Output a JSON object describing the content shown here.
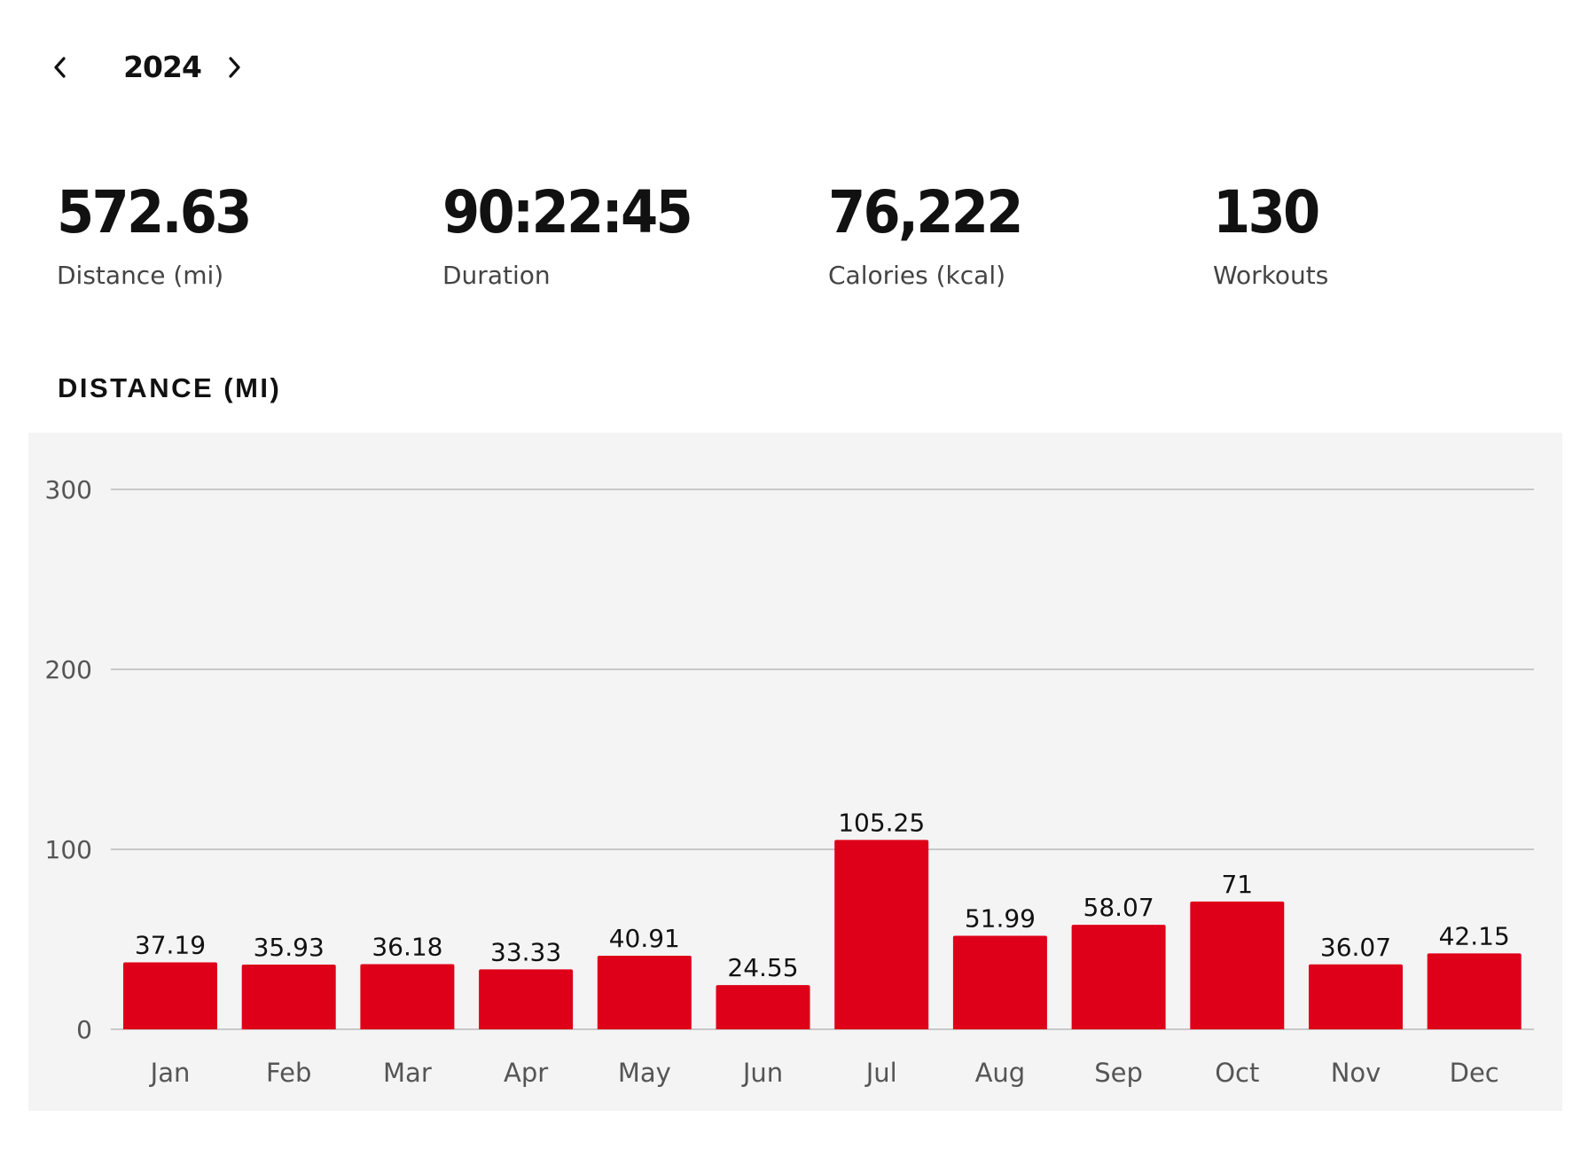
{
  "nav": {
    "year": "2024",
    "prev_icon": "chevron-left-icon",
    "next_icon": "chevron-right-icon"
  },
  "stats": [
    {
      "value": "572.63",
      "label": "Distance (mi)"
    },
    {
      "value": "90:22:45",
      "label": "Duration"
    },
    {
      "value": "76,222",
      "label": "Calories (kcal)"
    },
    {
      "value": "130",
      "label": "Workouts"
    }
  ],
  "section_title": "DISTANCE (MI)",
  "colors": {
    "bar": "#de0019",
    "gridline": "#c8c8c8",
    "panel_bg": "#f4f4f4"
  },
  "chart_data": {
    "type": "bar",
    "title": "DISTANCE (MI)",
    "xlabel": "",
    "ylabel": "",
    "categories": [
      "Jan",
      "Feb",
      "Mar",
      "Apr",
      "May",
      "Jun",
      "Jul",
      "Aug",
      "Sep",
      "Oct",
      "Nov",
      "Dec"
    ],
    "values": [
      37.19,
      35.93,
      36.18,
      33.33,
      40.91,
      24.55,
      105.25,
      51.99,
      58.07,
      71,
      36.07,
      42.15
    ],
    "value_labels": [
      "37.19",
      "35.93",
      "36.18",
      "33.33",
      "40.91",
      "24.55",
      "105.25",
      "51.99",
      "58.07",
      "71",
      "36.07",
      "42.15"
    ],
    "ylim": [
      0,
      300
    ],
    "yticks": [
      0,
      100,
      200,
      300
    ],
    "ytick_labels": [
      "0",
      "100",
      "200",
      "300"
    ],
    "grid": true,
    "legend": "none"
  }
}
